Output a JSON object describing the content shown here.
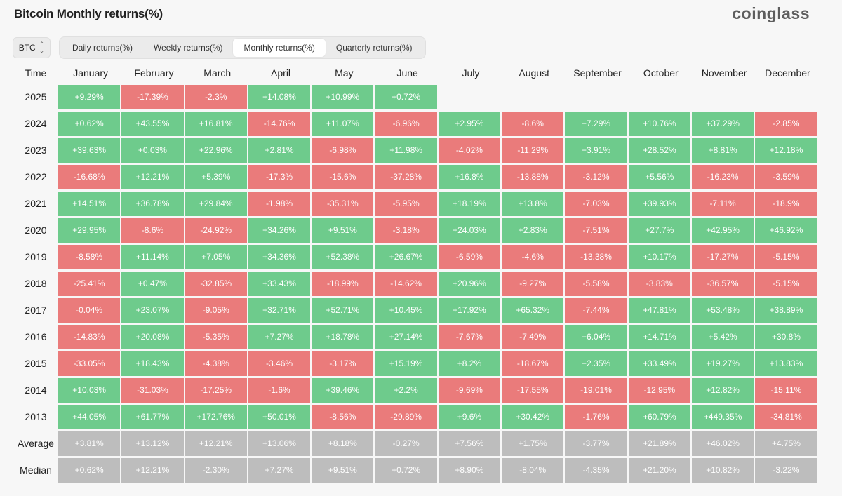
{
  "header": {
    "title": "Bitcoin Monthly returns(%)",
    "logo": "coinglass"
  },
  "controls": {
    "coin": "BTC",
    "tabs": [
      {
        "label": "Daily returns(%)",
        "active": false
      },
      {
        "label": "Weekly returns(%)",
        "active": false
      },
      {
        "label": "Monthly returns(%)",
        "active": true
      },
      {
        "label": "Quarterly returns(%)",
        "active": false
      }
    ]
  },
  "colors": {
    "positive": "#6ecb8c",
    "negative": "#ea7b7b",
    "summary": "#bdbdbd"
  },
  "table": {
    "time_header": "Time",
    "months": [
      "January",
      "February",
      "March",
      "April",
      "May",
      "June",
      "July",
      "August",
      "September",
      "October",
      "November",
      "December"
    ],
    "rows": [
      {
        "label": "2025",
        "kind": "year",
        "values": [
          "+9.29%",
          "-17.39%",
          "-2.3%",
          "+14.08%",
          "+10.99%",
          "+0.72%",
          "",
          "",
          "",
          "",
          "",
          ""
        ]
      },
      {
        "label": "2024",
        "kind": "year",
        "values": [
          "+0.62%",
          "+43.55%",
          "+16.81%",
          "-14.76%",
          "+11.07%",
          "-6.96%",
          "+2.95%",
          "-8.6%",
          "+7.29%",
          "+10.76%",
          "+37.29%",
          "-2.85%"
        ]
      },
      {
        "label": "2023",
        "kind": "year",
        "values": [
          "+39.63%",
          "+0.03%",
          "+22.96%",
          "+2.81%",
          "-6.98%",
          "+11.98%",
          "-4.02%",
          "-11.29%",
          "+3.91%",
          "+28.52%",
          "+8.81%",
          "+12.18%"
        ]
      },
      {
        "label": "2022",
        "kind": "year",
        "values": [
          "-16.68%",
          "+12.21%",
          "+5.39%",
          "-17.3%",
          "-15.6%",
          "-37.28%",
          "+16.8%",
          "-13.88%",
          "-3.12%",
          "+5.56%",
          "-16.23%",
          "-3.59%"
        ]
      },
      {
        "label": "2021",
        "kind": "year",
        "values": [
          "+14.51%",
          "+36.78%",
          "+29.84%",
          "-1.98%",
          "-35.31%",
          "-5.95%",
          "+18.19%",
          "+13.8%",
          "-7.03%",
          "+39.93%",
          "-7.11%",
          "-18.9%"
        ]
      },
      {
        "label": "2020",
        "kind": "year",
        "values": [
          "+29.95%",
          "-8.6%",
          "-24.92%",
          "+34.26%",
          "+9.51%",
          "-3.18%",
          "+24.03%",
          "+2.83%",
          "-7.51%",
          "+27.7%",
          "+42.95%",
          "+46.92%"
        ]
      },
      {
        "label": "2019",
        "kind": "year",
        "values": [
          "-8.58%",
          "+11.14%",
          "+7.05%",
          "+34.36%",
          "+52.38%",
          "+26.67%",
          "-6.59%",
          "-4.6%",
          "-13.38%",
          "+10.17%",
          "-17.27%",
          "-5.15%"
        ]
      },
      {
        "label": "2018",
        "kind": "year",
        "values": [
          "-25.41%",
          "+0.47%",
          "-32.85%",
          "+33.43%",
          "-18.99%",
          "-14.62%",
          "+20.96%",
          "-9.27%",
          "-5.58%",
          "-3.83%",
          "-36.57%",
          "-5.15%"
        ]
      },
      {
        "label": "2017",
        "kind": "year",
        "values": [
          "-0.04%",
          "+23.07%",
          "-9.05%",
          "+32.71%",
          "+52.71%",
          "+10.45%",
          "+17.92%",
          "+65.32%",
          "-7.44%",
          "+47.81%",
          "+53.48%",
          "+38.89%"
        ]
      },
      {
        "label": "2016",
        "kind": "year",
        "values": [
          "-14.83%",
          "+20.08%",
          "-5.35%",
          "+7.27%",
          "+18.78%",
          "+27.14%",
          "-7.67%",
          "-7.49%",
          "+6.04%",
          "+14.71%",
          "+5.42%",
          "+30.8%"
        ]
      },
      {
        "label": "2015",
        "kind": "year",
        "values": [
          "-33.05%",
          "+18.43%",
          "-4.38%",
          "-3.46%",
          "-3.17%",
          "+15.19%",
          "+8.2%",
          "-18.67%",
          "+2.35%",
          "+33.49%",
          "+19.27%",
          "+13.83%"
        ]
      },
      {
        "label": "2014",
        "kind": "year",
        "values": [
          "+10.03%",
          "-31.03%",
          "-17.25%",
          "-1.6%",
          "+39.46%",
          "+2.2%",
          "-9.69%",
          "-17.55%",
          "-19.01%",
          "-12.95%",
          "+12.82%",
          "-15.11%"
        ]
      },
      {
        "label": "2013",
        "kind": "year",
        "values": [
          "+44.05%",
          "+61.77%",
          "+172.76%",
          "+50.01%",
          "-8.56%",
          "-29.89%",
          "+9.6%",
          "+30.42%",
          "-1.76%",
          "+60.79%",
          "+449.35%",
          "-34.81%"
        ]
      },
      {
        "label": "Average",
        "kind": "stat",
        "values": [
          "+3.81%",
          "+13.12%",
          "+12.21%",
          "+13.06%",
          "+8.18%",
          "-0.27%",
          "+7.56%",
          "+1.75%",
          "-3.77%",
          "+21.89%",
          "+46.02%",
          "+4.75%"
        ]
      },
      {
        "label": "Median",
        "kind": "stat",
        "values": [
          "+0.62%",
          "+12.21%",
          "-2.30%",
          "+7.27%",
          "+9.51%",
          "+0.72%",
          "+8.90%",
          "-8.04%",
          "-4.35%",
          "+21.20%",
          "+10.82%",
          "-3.22%"
        ]
      }
    ]
  }
}
